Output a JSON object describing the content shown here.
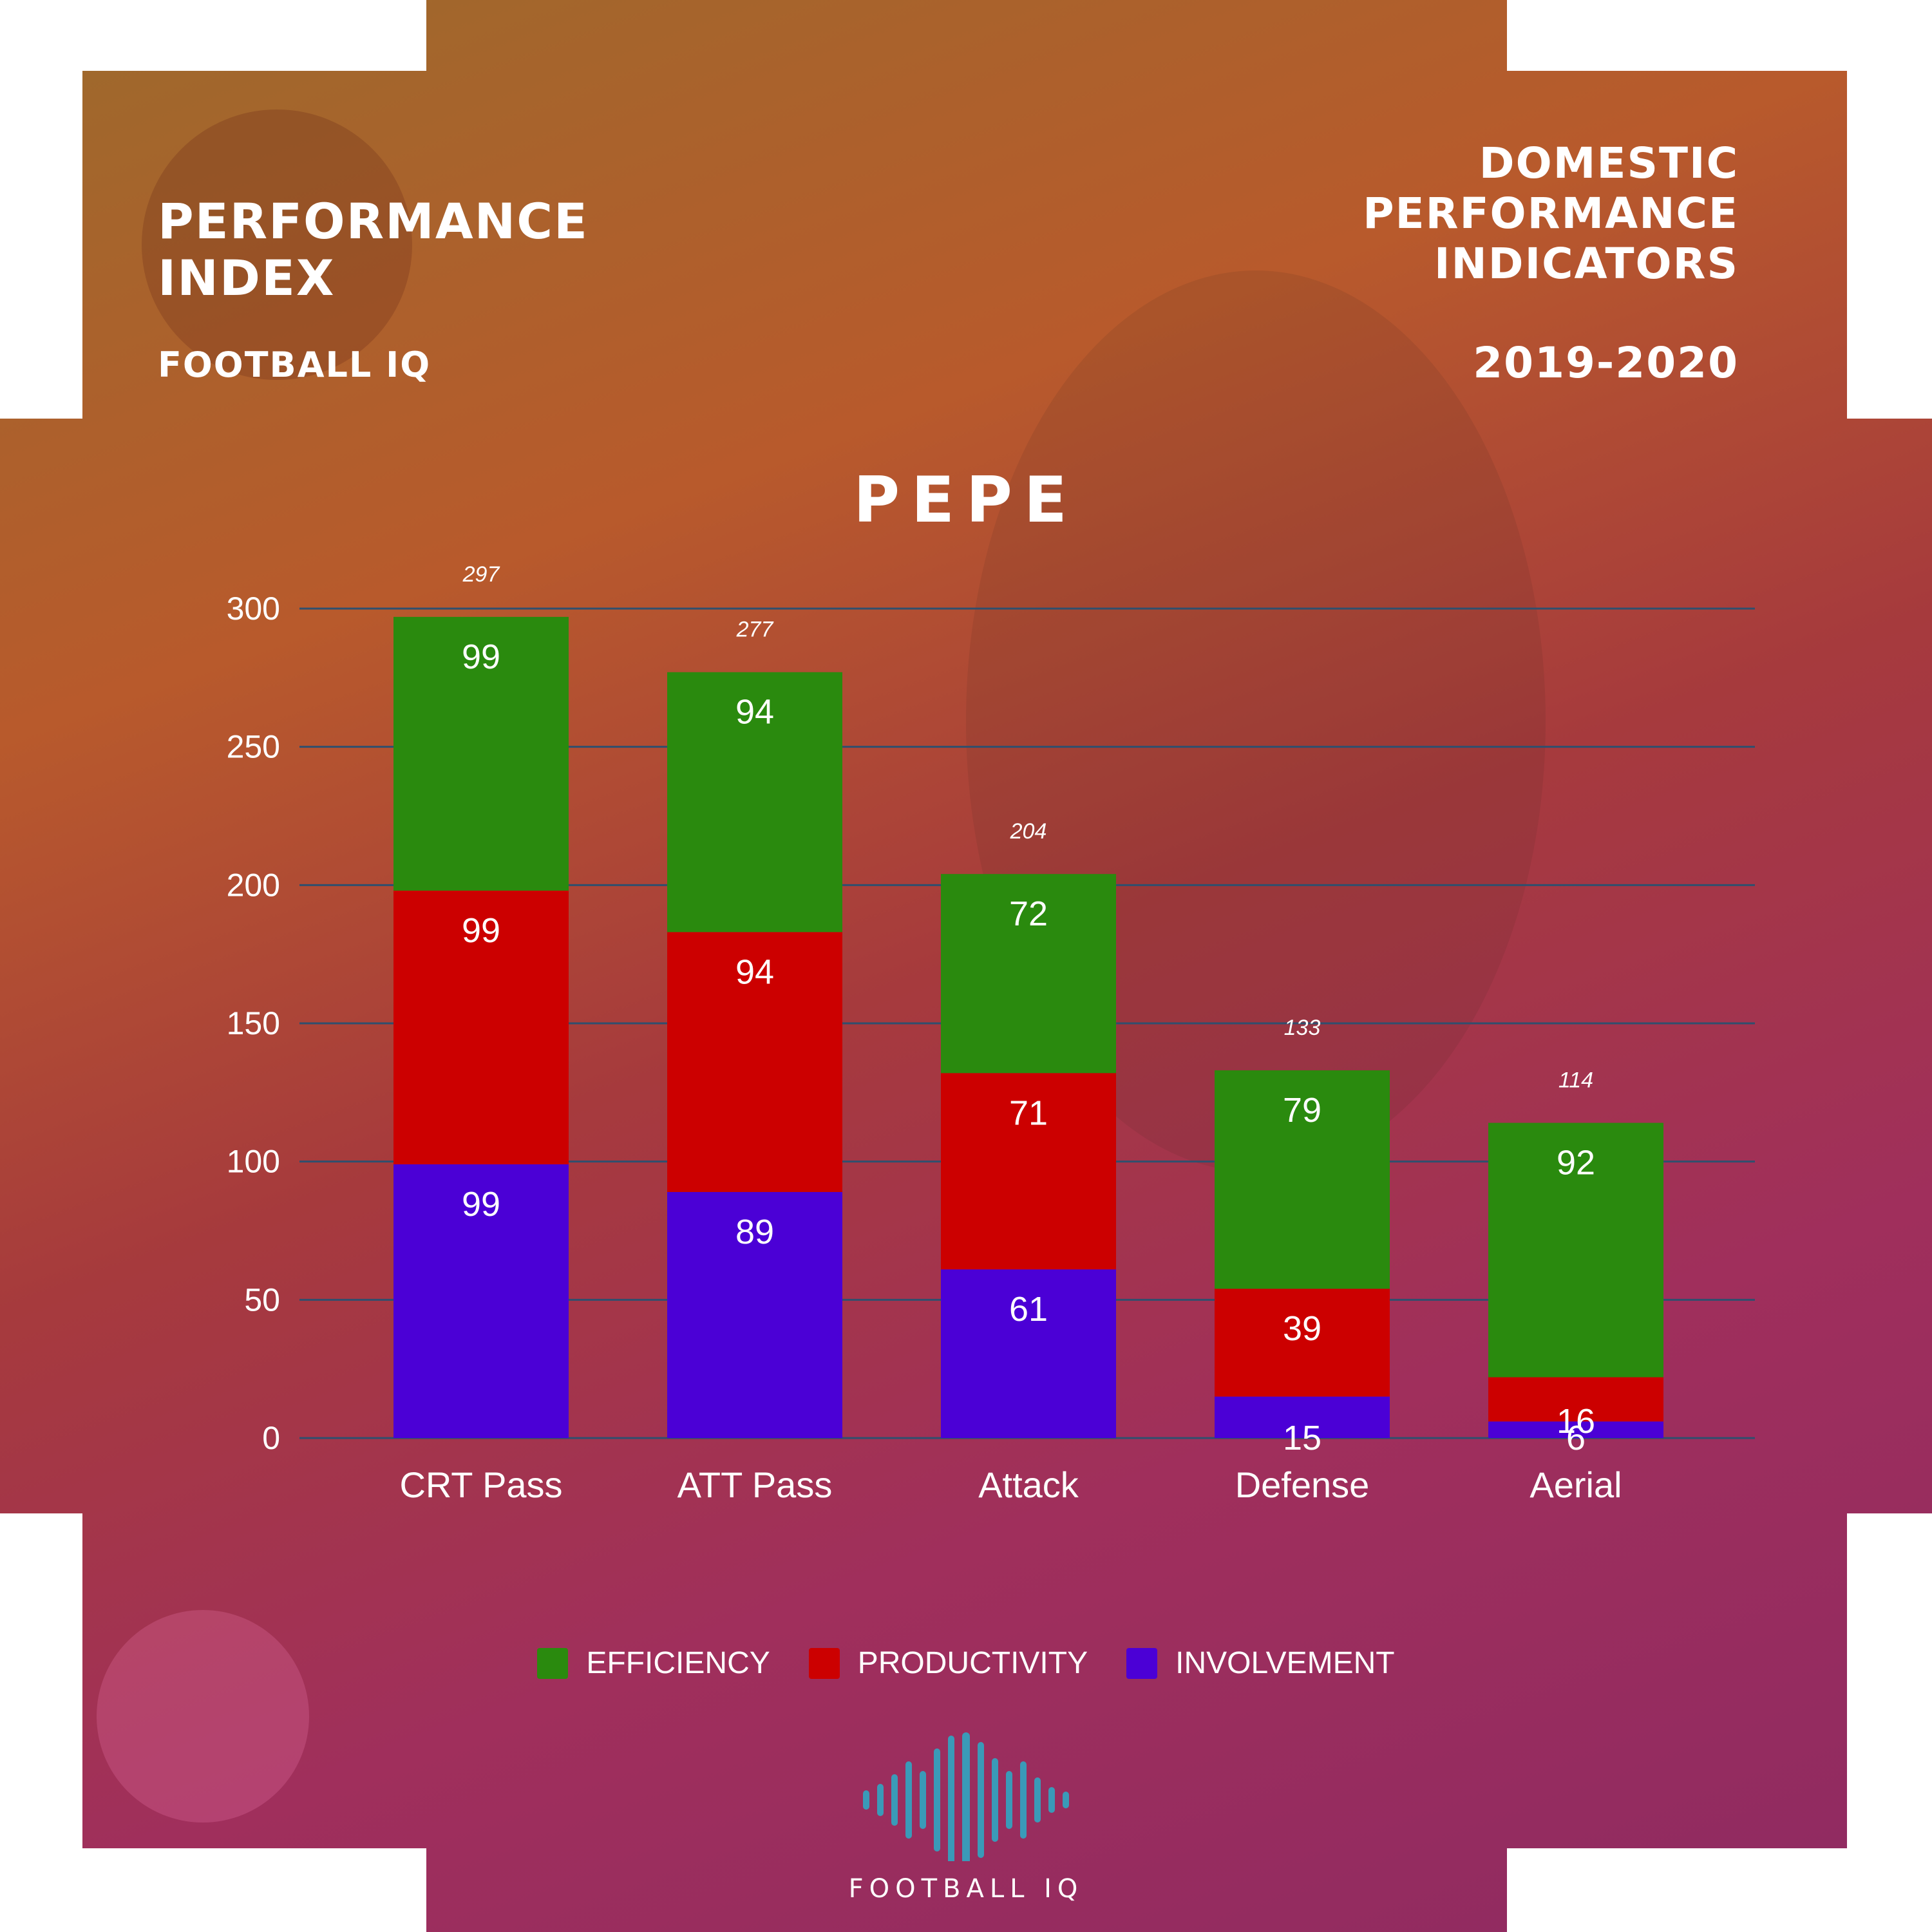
{
  "header": {
    "left_title": "PERFORMANCE INDEX",
    "left_subtitle": "FOOTBALL IQ",
    "right_title": "DOMESTIC PERFORMANCE INDICATORS",
    "right_season": "2019-2020"
  },
  "player_name": "PEPE",
  "legend": [
    {
      "label": "EFFICIENCY",
      "color": "#2a8a0e"
    },
    {
      "label": "PRODUCTIVITY",
      "color": "#cc0000"
    },
    {
      "label": "INVOLVEMENT",
      "color": "#4b00d6"
    }
  ],
  "logo": {
    "text": "FOOTBALL IQ",
    "icon": "soundwave-icon"
  },
  "chart_data": {
    "type": "bar",
    "stacked": true,
    "categories": [
      "CRT Pass",
      "ATT Pass",
      "Attack",
      "Defense",
      "Aerial"
    ],
    "series": [
      {
        "name": "INVOLVEMENT",
        "color": "#4b00d6",
        "values": [
          99,
          89,
          61,
          15,
          6
        ]
      },
      {
        "name": "PRODUCTIVITY",
        "color": "#cc0000",
        "values": [
          99,
          94,
          71,
          39,
          16
        ]
      },
      {
        "name": "EFFICIENCY",
        "color": "#2a8a0e",
        "values": [
          99,
          94,
          72,
          79,
          92
        ]
      }
    ],
    "totals": [
      297,
      277,
      204,
      133,
      114
    ],
    "yticks": [
      0,
      50,
      100,
      150,
      200,
      250,
      300
    ],
    "ylim": [
      0,
      300
    ],
    "grid": true,
    "legend_position": "bottom"
  }
}
